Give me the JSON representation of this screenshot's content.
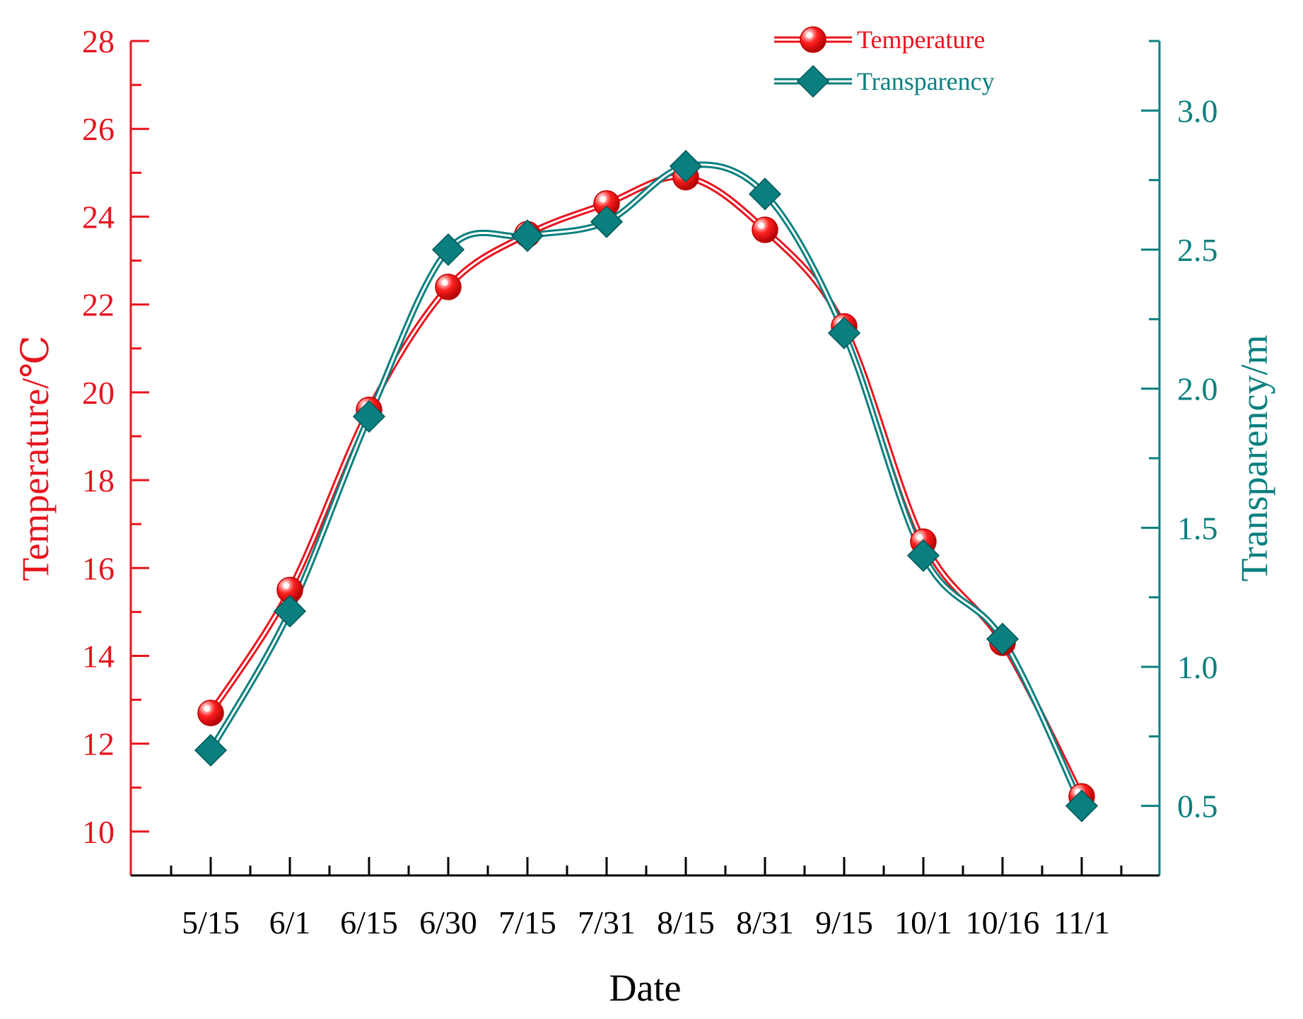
{
  "chart_data": {
    "type": "line",
    "xlabel": "Date",
    "categories": [
      "5/15",
      "6/1",
      "6/15",
      "6/30",
      "7/15",
      "7/31",
      "8/15",
      "8/31",
      "9/15",
      "10/1",
      "10/16",
      "11/1"
    ],
    "series": [
      {
        "name": "Temperature",
        "axis": "left",
        "marker": "circle",
        "color": "#e8141e",
        "values": [
          12.7,
          15.5,
          19.6,
          22.4,
          23.6,
          24.3,
          24.9,
          23.7,
          21.5,
          16.6,
          14.3,
          10.8
        ]
      },
      {
        "name": "Transparency",
        "axis": "right",
        "marker": "diamond",
        "color": "#0a7f7f",
        "values": [
          0.7,
          1.2,
          1.9,
          2.5,
          2.55,
          2.6,
          2.8,
          2.7,
          2.2,
          1.4,
          1.1,
          0.5
        ]
      }
    ],
    "y_left": {
      "label": "Temperature/℃",
      "range": [
        9,
        28
      ],
      "major_ticks": [
        "10",
        "12",
        "14",
        "16",
        "18",
        "20",
        "22",
        "24",
        "26",
        "28"
      ],
      "color": "#e8141e"
    },
    "y_right": {
      "label": "Transparency/m",
      "range": [
        0.25,
        3.25
      ],
      "major_ticks": [
        "0.5",
        "1.0",
        "1.5",
        "2.0",
        "2.5",
        "3.0"
      ],
      "color": "#0a7f7f"
    },
    "legend": {
      "position": "top-right"
    },
    "grid": false
  }
}
